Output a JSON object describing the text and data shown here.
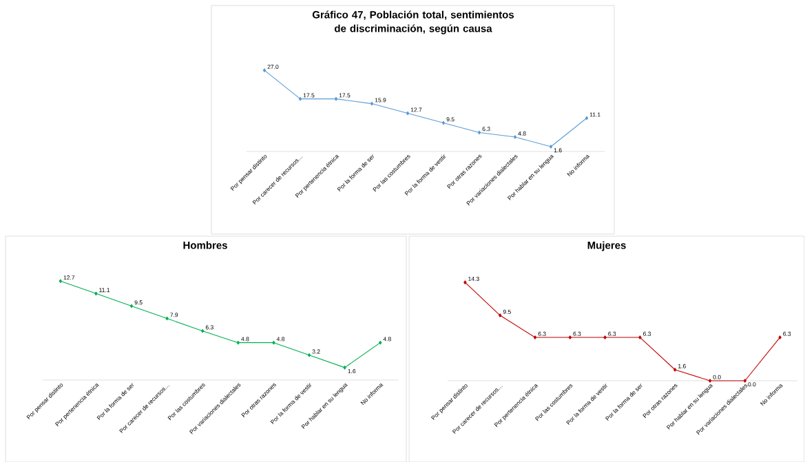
{
  "chart_data": [
    {
      "type": "line",
      "title": "Gráfico 47, Población total, sentimientos de discriminación, según causa",
      "categories": [
        "Por pensar distinto",
        "Por carecer de recursos…",
        "Por pertenencia étnica",
        "Por la forma de ser",
        "Por las costumbres",
        "Por la forma de vestir",
        "Por otras razones",
        "Por variaciones dialectales",
        "Por hablar en su lengua",
        "No informa"
      ],
      "values": [
        27.0,
        17.5,
        17.5,
        15.9,
        12.7,
        9.5,
        6.3,
        4.8,
        1.6,
        11.1
      ],
      "value_labels": [
        "27.0",
        "17.5",
        "17.5",
        "15.9",
        "12.7",
        "9.5",
        "6.3",
        "4.8",
        "1.6",
        "11.1"
      ],
      "color": "#5b9bd5",
      "marker": "diamond"
    },
    {
      "type": "line",
      "title": "Hombres",
      "categories": [
        "Por pensar distinto",
        "Por pertenencia étnica",
        "Por la forma de ser",
        "Por carecer de recursos…",
        "Por las costumbres",
        "Por variaciones dialectales",
        "Por otras razones",
        "Por la forma de vestir",
        "Por hablar en su lengua",
        "No informa"
      ],
      "values": [
        12.7,
        11.1,
        9.5,
        7.9,
        6.3,
        4.8,
        4.8,
        3.2,
        1.6,
        4.8
      ],
      "value_labels": [
        "12.7",
        "11.1",
        "9.5",
        "7.9",
        "6.3",
        "4.8",
        "4.8",
        "3.2",
        "1.6",
        "4.8"
      ],
      "color": "#00b050",
      "marker": "diamond"
    },
    {
      "type": "line",
      "title": "Mujeres",
      "categories": [
        "Por pensar distinto",
        "Por carecer de recursos…",
        "Por pertenencia étnica",
        "Por las costumbres",
        "Por la forma de vestir",
        "Por la forma de ser",
        "Por otras razones",
        "Por hablar en su lengua",
        "Por variaciones dialectales",
        "No informa"
      ],
      "values": [
        14.3,
        9.5,
        6.3,
        6.3,
        6.3,
        6.3,
        1.6,
        0,
        0,
        6.3
      ],
      "value_labels": [
        "14.3",
        "9.5",
        "6.3",
        "6.3",
        "6.3",
        "6.3",
        "1.6",
        "0.0",
        "0.0",
        "6.3"
      ],
      "color": "#c00000",
      "marker": "diamond"
    }
  ]
}
